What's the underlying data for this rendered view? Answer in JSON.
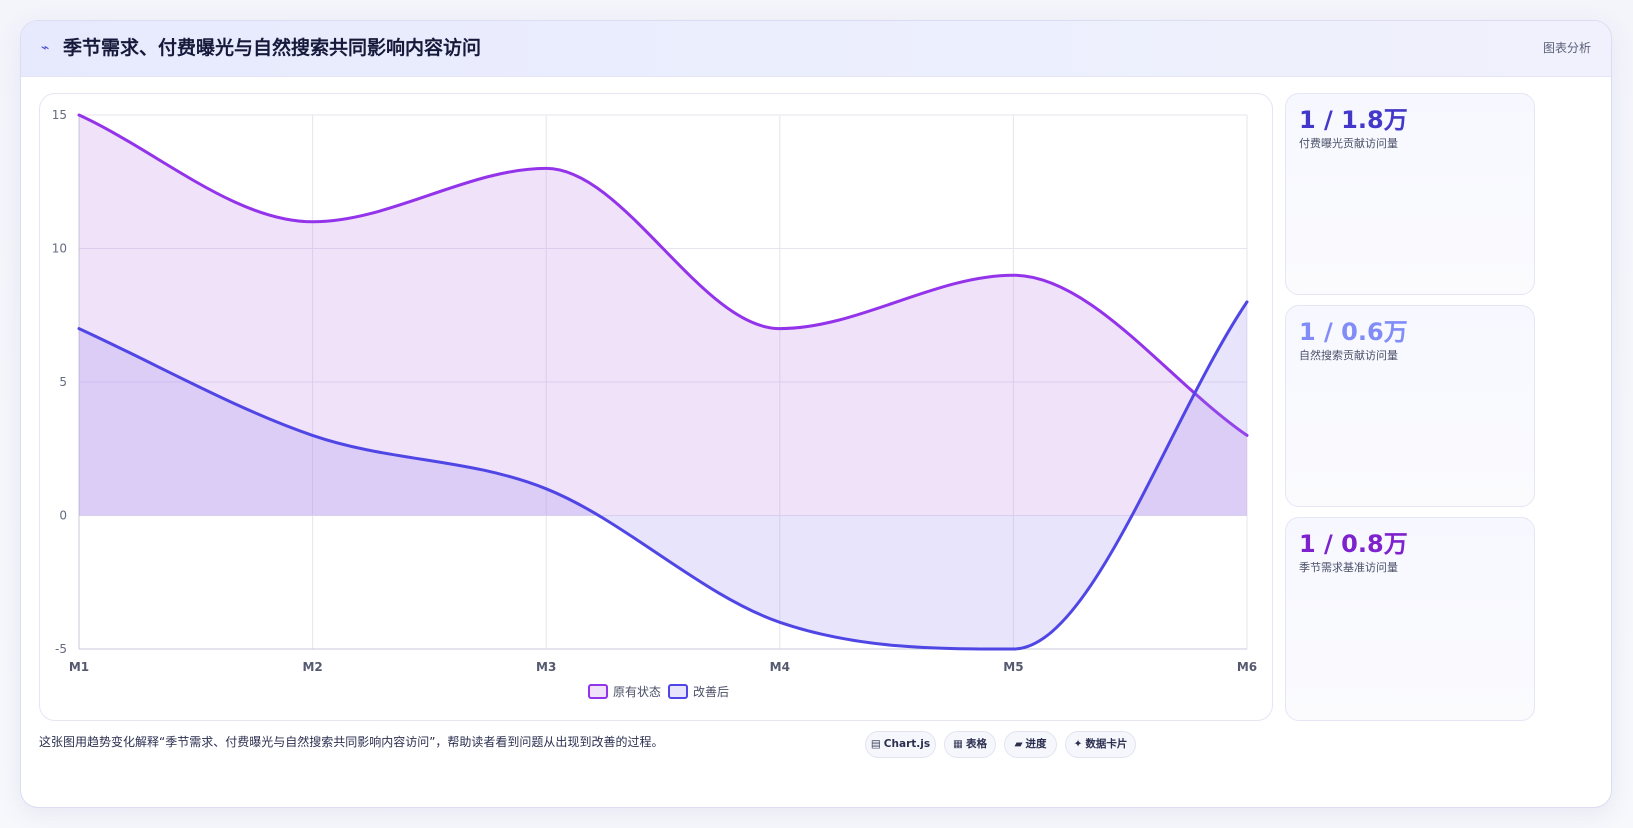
{
  "header": {
    "icon": "line-chart-icon",
    "icon_glyph": "⌁",
    "title": "季节需求、付费曝光与自然搜索共同影响内容访问",
    "tag": "图表分析"
  },
  "stats": [
    {
      "value": "1 / 1.8万",
      "label": "付费曝光贡献访问量",
      "color": "#4338ca"
    },
    {
      "value": "1 / 0.6万",
      "label": "自然搜索贡献访问量",
      "color": "#818cf8"
    },
    {
      "value": "1 / 0.8万",
      "label": "季节需求基准访问量",
      "color": "#7e22ce"
    }
  ],
  "footer": {
    "text": "这张图用趋势变化解释“季节需求、付费曝光与自然搜索共同影响内容访问”，帮助读者看到问题从出现到改善的过程。"
  },
  "chips": [
    {
      "icon": "chart-icon",
      "glyph": "▤",
      "label": "Chart.js"
    },
    {
      "icon": "table-icon",
      "glyph": "▦",
      "label": "表格"
    },
    {
      "icon": "progress-icon",
      "glyph": "▰",
      "label": "进度"
    },
    {
      "icon": "data-card-icon",
      "glyph": "✦",
      "label": "数据卡片"
    }
  ],
  "chart_data": {
    "type": "line",
    "categories": [
      "M1",
      "M2",
      "M3",
      "M4",
      "M5",
      "M6"
    ],
    "series": [
      {
        "name": "原有状态",
        "values": [
          15,
          11,
          13,
          7,
          9,
          3
        ],
        "color": "#9333ea",
        "fill": "rgba(196, 140, 232, 0.25)"
      },
      {
        "name": "改善后",
        "values": [
          7,
          3,
          1,
          -4,
          -5,
          8
        ],
        "color": "#4f46e5",
        "fill": "rgba(150, 130, 240, 0.22)"
      }
    ],
    "ylim": [
      -5,
      15
    ],
    "yticks": [
      15,
      10,
      5,
      0,
      -5
    ],
    "grid": true,
    "legend": "bottom",
    "smooth": true,
    "area_fill": true
  }
}
